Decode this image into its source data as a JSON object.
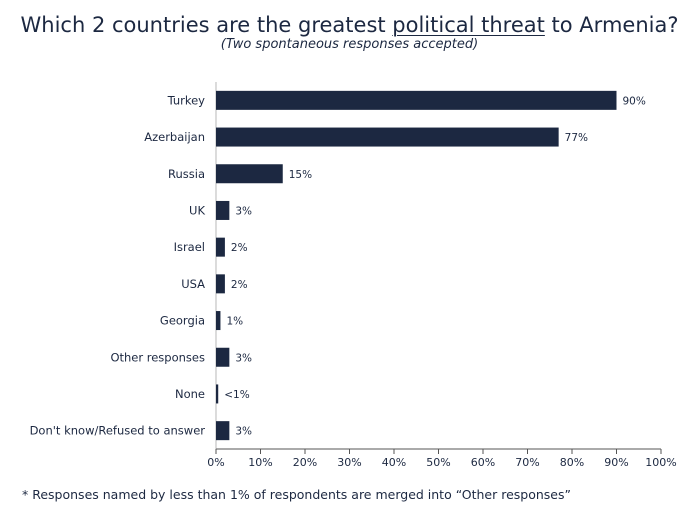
{
  "title": {
    "before": "Which 2 countries are the greatest ",
    "highlight": "political threat",
    "after": " to Armenia?"
  },
  "subtitle": "(Two spontaneous responses accepted)",
  "footnote": "* Responses named by less than 1% of respondents are merged into “Other responses”",
  "chart_data": {
    "type": "bar",
    "orientation": "horizontal",
    "categories": [
      "Turkey",
      "Azerbaijan",
      "Russia",
      "UK",
      "Israel",
      "USA",
      "Georgia",
      "Other responses",
      "None",
      "Don't know/Refused to answer"
    ],
    "values": [
      90,
      77,
      15,
      3,
      2,
      2,
      1,
      3,
      0.5,
      3
    ],
    "data_labels": [
      "90%",
      "77%",
      "15%",
      "3%",
      "2%",
      "2%",
      "1%",
      "3%",
      "<1%",
      "3%"
    ],
    "xlim": [
      0,
      100
    ],
    "xticks": [
      0,
      10,
      20,
      30,
      40,
      50,
      60,
      70,
      80,
      90,
      100
    ],
    "xtick_labels": [
      "0%",
      "10%",
      "20%",
      "30%",
      "40%",
      "50%",
      "60%",
      "70%",
      "80%",
      "90%",
      "100%"
    ],
    "bar_color": "#1c2841",
    "grid": false,
    "legend": false
  }
}
